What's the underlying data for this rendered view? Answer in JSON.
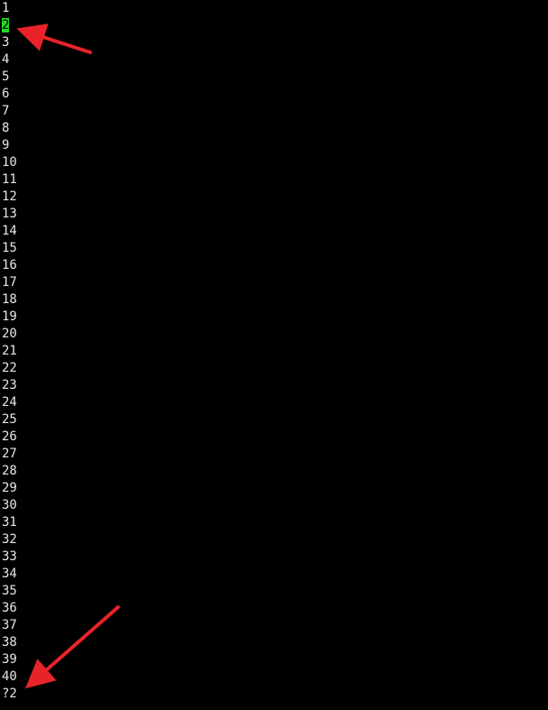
{
  "terminal": {
    "lines": [
      "1",
      "2",
      "3",
      "4",
      "5",
      "6",
      "7",
      "8",
      "9",
      "10",
      "11",
      "12",
      "13",
      "14",
      "15",
      "16",
      "17",
      "18",
      "19",
      "20",
      "21",
      "22",
      "23",
      "24",
      "25",
      "26",
      "27",
      "28",
      "29",
      "30",
      "31",
      "32",
      "33",
      "34",
      "35",
      "36",
      "37",
      "38",
      "39",
      "40"
    ],
    "highlighted_line": "2",
    "command_line": "?2"
  },
  "colors": {
    "background": "#000000",
    "text": "#e6e6e6",
    "highlight": "#22dd22",
    "annotation_arrow": "#e8232a"
  },
  "annotations": [
    "red-arrow-icon",
    "red-arrow-icon"
  ]
}
